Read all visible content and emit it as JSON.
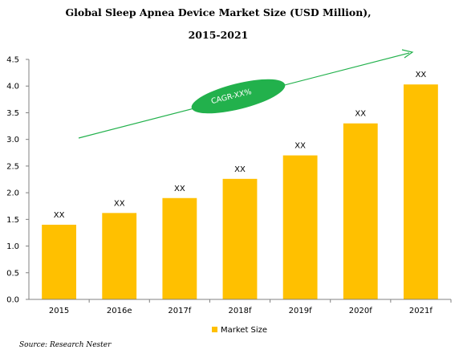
{
  "chart_data": {
    "type": "bar",
    "title_line1": "Global Sleep Apnea Device Market Size (USD Million),",
    "title_line2": "2015-2021",
    "categories": [
      "2015",
      "2016e",
      "2017f",
      "2018f",
      "2019f",
      "2020f",
      "2021f"
    ],
    "series": [
      {
        "name": "Market Size",
        "values": [
          1.4,
          1.62,
          1.9,
          2.26,
          2.7,
          3.3,
          4.03
        ],
        "color": "#FFC000"
      }
    ],
    "data_labels": [
      "XX",
      "XX",
      "XX",
      "XX",
      "XX",
      "XX",
      "XX"
    ],
    "ylim": [
      0,
      4.5
    ],
    "yticks": [
      "0.0",
      "0.5",
      "1.0",
      "1.5",
      "2.0",
      "2.5",
      "3.0",
      "3.5",
      "4.0",
      "4.5"
    ],
    "grid": false,
    "legend_position": "bottom",
    "annotation": {
      "text": "CAGR-XX%",
      "color": "#22B14C"
    },
    "source": "Source: Research Nester"
  }
}
